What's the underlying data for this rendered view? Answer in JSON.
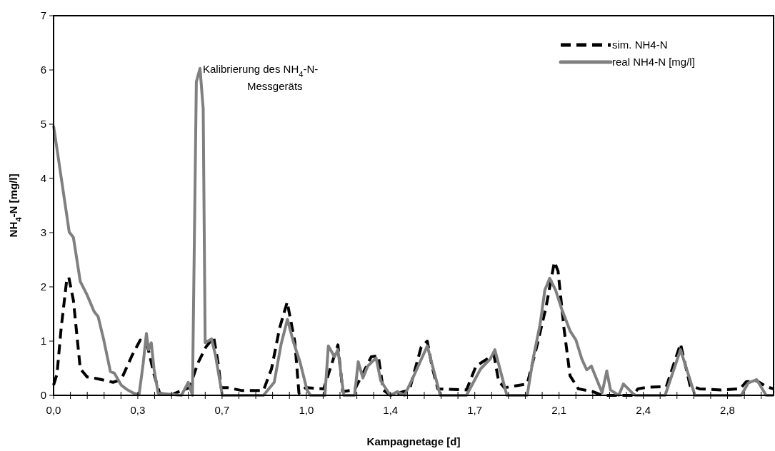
{
  "chart_data": {
    "type": "line",
    "xlabel": "Kampagnetage [d]",
    "ylabel": "NH$_{4}$-N [mg/l]",
    "xlim": [
      0,
      2.94
    ],
    "ylim": [
      0,
      7
    ],
    "yticks": [
      0,
      1,
      2,
      3,
      4,
      5,
      6,
      7
    ],
    "xticks": [
      {
        "value": 0,
        "label": "0,0"
      },
      {
        "value": 0.0688,
        "label": null
      },
      {
        "value": 0.1376,
        "label": null
      },
      {
        "value": 0.2064,
        "label": null
      },
      {
        "value": 0.2752,
        "label": null
      },
      {
        "value": 0.344,
        "label": "0,3"
      },
      {
        "value": 0.4128,
        "label": null
      },
      {
        "value": 0.4816,
        "label": null
      },
      {
        "value": 0.5504,
        "label": null
      },
      {
        "value": 0.6192,
        "label": null
      },
      {
        "value": 0.688,
        "label": "0,7"
      },
      {
        "value": 0.7568,
        "label": null
      },
      {
        "value": 0.8256,
        "label": null
      },
      {
        "value": 0.8944,
        "label": null
      },
      {
        "value": 0.9632,
        "label": null
      },
      {
        "value": 1.032,
        "label": "1,0"
      },
      {
        "value": 1.1008,
        "label": null
      },
      {
        "value": 1.1696,
        "label": null
      },
      {
        "value": 1.2384,
        "label": null
      },
      {
        "value": 1.3072,
        "label": null
      },
      {
        "value": 1.376,
        "label": "1,4"
      },
      {
        "value": 1.4448,
        "label": null
      },
      {
        "value": 1.5136,
        "label": null
      },
      {
        "value": 1.5824,
        "label": null
      },
      {
        "value": 1.6512,
        "label": null
      },
      {
        "value": 1.72,
        "label": "1,7"
      },
      {
        "value": 1.7888,
        "label": null
      },
      {
        "value": 1.8576,
        "label": null
      },
      {
        "value": 1.9264,
        "label": null
      },
      {
        "value": 1.9952,
        "label": null
      },
      {
        "value": 2.064,
        "label": "2,1"
      },
      {
        "value": 2.1328,
        "label": null
      },
      {
        "value": 2.2016,
        "label": null
      },
      {
        "value": 2.2704,
        "label": null
      },
      {
        "value": 2.3392,
        "label": null
      },
      {
        "value": 2.408,
        "label": "2,4"
      },
      {
        "value": 2.4768,
        "label": null
      },
      {
        "value": 2.5456,
        "label": null
      },
      {
        "value": 2.6144,
        "label": null
      },
      {
        "value": 2.6832,
        "label": null
      },
      {
        "value": 2.752,
        "label": "2,8"
      },
      {
        "value": 2.8208,
        "label": null
      },
      {
        "value": 2.8896,
        "label": null
      }
    ],
    "legend": "top right",
    "grid": false,
    "annotations": [
      {
        "text": "Kalibrierung des NH$_{4}$-N-\nMessgeräts",
        "x": 0.598,
        "y": 6.03
      }
    ],
    "series": [
      {
        "name": "sim. NH4-N",
        "color": "#000000",
        "line_style": "dashed",
        "x": [
          0,
          0.014,
          0.031,
          0.053,
          0.062,
          0.081,
          0.109,
          0.137,
          0.176,
          0.243,
          0.276,
          0.321,
          0.354,
          0.382,
          0.41,
          0.433,
          0.477,
          0.522,
          0.555,
          0.589,
          0.622,
          0.654,
          0.672,
          0.684,
          0.712,
          0.767,
          0.857,
          0.89,
          0.923,
          0.954,
          0.985,
          1.002,
          1.029,
          1.035,
          1.103,
          1.161,
          1.181,
          1.229,
          1.268,
          1.297,
          1.326,
          1.346,
          1.375,
          1.453,
          1.501,
          1.526,
          1.545,
          1.569,
          1.686,
          1.725,
          1.798,
          1.817,
          1.841,
          1.934,
          1.977,
          2.011,
          2.045,
          2.06,
          2.084,
          2.109,
          2.143,
          2.201,
          2.24,
          2.366,
          2.386,
          2.424,
          2.502,
          2.56,
          2.599,
          2.638,
          2.726,
          2.803,
          2.828,
          2.871,
          2.91,
          2.94
        ],
        "values": [
          0.19,
          0.39,
          1.24,
          2.1,
          2.18,
          1.75,
          0.49,
          0.34,
          0.31,
          0.24,
          0.29,
          0.74,
          1.02,
          0.94,
          0.39,
          0.04,
          0,
          0.09,
          0.14,
          0.59,
          0.89,
          1.07,
          0.59,
          0.14,
          0.14,
          0.09,
          0.09,
          0.49,
          1.24,
          1.72,
          0.99,
          0.04,
          0.14,
          0.14,
          0.12,
          0.93,
          0.07,
          0.1,
          0.45,
          0.71,
          0.73,
          0.1,
          0,
          0.1,
          0.89,
          1.0,
          0.54,
          0.12,
          0.1,
          0.54,
          0.75,
          0.27,
          0.14,
          0.21,
          0.97,
          1.63,
          2.46,
          2.29,
          1.24,
          0.36,
          0.12,
          0.07,
          0,
          0,
          0.12,
          0.15,
          0.16,
          0.95,
          0.18,
          0.12,
          0.1,
          0.12,
          0.25,
          0.27,
          0.16,
          0.12
        ]
      },
      {
        "name": "real NH4-N [mg/l]",
        "color": "#808080",
        "line_style": "solid",
        "x": [
          0,
          0.031,
          0.064,
          0.081,
          0.109,
          0.137,
          0.165,
          0.182,
          0.204,
          0.232,
          0.248,
          0.276,
          0.299,
          0.327,
          0.349,
          0.366,
          0.379,
          0.388,
          0.399,
          0.41,
          0.427,
          0.522,
          0.55,
          0.567,
          0.583,
          0.598,
          0.611,
          0.619,
          0.645,
          0.661,
          0.689,
          0.857,
          0.901,
          0.929,
          0.955,
          0.979,
          1.006,
          1.035,
          1.049,
          1.108,
          1.122,
          1.147,
          1.161,
          1.185,
          1.229,
          1.244,
          1.263,
          1.283,
          1.317,
          1.336,
          1.375,
          1.404,
          1.433,
          1.462,
          1.526,
          1.579,
          1.686,
          1.744,
          1.783,
          1.802,
          1.851,
          1.934,
          1.958,
          1.987,
          2.006,
          2.026,
          2.05,
          2.075,
          2.109,
          2.133,
          2.157,
          2.177,
          2.196,
          2.22,
          2.24,
          2.259,
          2.274,
          2.308,
          2.327,
          2.366,
          2.376,
          2.497,
          2.56,
          2.619,
          2.808,
          2.837,
          2.871,
          2.91,
          2.94
        ],
        "values": [
          4.97,
          4.02,
          3.01,
          2.91,
          2.1,
          1.85,
          1.55,
          1.45,
          1.04,
          0.44,
          0.41,
          0.19,
          0.11,
          0.04,
          0.01,
          0.59,
          1.14,
          0.84,
          0.97,
          0.49,
          0.04,
          0,
          0.24,
          0,
          5.78,
          6.03,
          5.28,
          0.97,
          1.04,
          0.74,
          0,
          0,
          0.24,
          0.94,
          1.4,
          0.99,
          0.62,
          0.1,
          0,
          0,
          0.91,
          0.71,
          0.84,
          0,
          0,
          0.62,
          0.32,
          0.54,
          0.69,
          0.27,
          0,
          0.07,
          0,
          0.27,
          0.91,
          0,
          0,
          0.49,
          0.67,
          0.84,
          0,
          0,
          0.67,
          1.32,
          1.94,
          2.16,
          1.94,
          1.59,
          1.19,
          1.02,
          0.67,
          0.47,
          0.54,
          0.27,
          0.05,
          0.45,
          0.1,
          0,
          0.21,
          0.03,
          0,
          0,
          0.84,
          0,
          0,
          0.23,
          0.29,
          0,
          0
        ]
      }
    ]
  }
}
